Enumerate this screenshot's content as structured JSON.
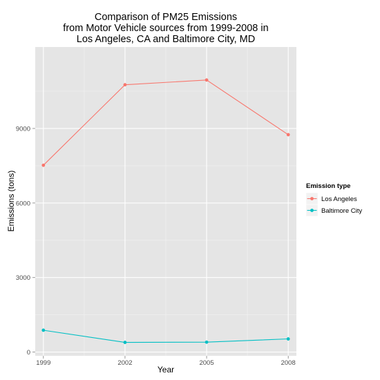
{
  "chart_data": {
    "type": "line",
    "title_lines": [
      "Comparison of PM25 Emissions",
      "from Motor Vehicle sources from 1999-2008 in",
      "Los Angeles, CA and Baltimore City, MD"
    ],
    "xlabel": "Year",
    "ylabel": "Emissions (tons)",
    "x": [
      1999,
      2002,
      2005,
      2008
    ],
    "x_ticks": [
      "1999",
      "2002",
      "2005",
      "2008"
    ],
    "y_ticks": [
      0,
      3000,
      6000,
      9000
    ],
    "y_tick_labels": [
      "0",
      "3000",
      "6000",
      "9000"
    ],
    "xlim": [
      1998.7,
      2008.3
    ],
    "ylim": [
      -150,
      12280
    ],
    "grid": true,
    "legend": {
      "title": "Emission type",
      "placement": "right"
    },
    "series": [
      {
        "name": "Los Angeles",
        "color": "#F8766D",
        "values": [
          7520,
          10760,
          10950,
          8750
        ]
      },
      {
        "name": "Baltimore City",
        "color": "#00BFC4",
        "values": [
          880,
          390,
          400,
          530
        ]
      }
    ]
  }
}
